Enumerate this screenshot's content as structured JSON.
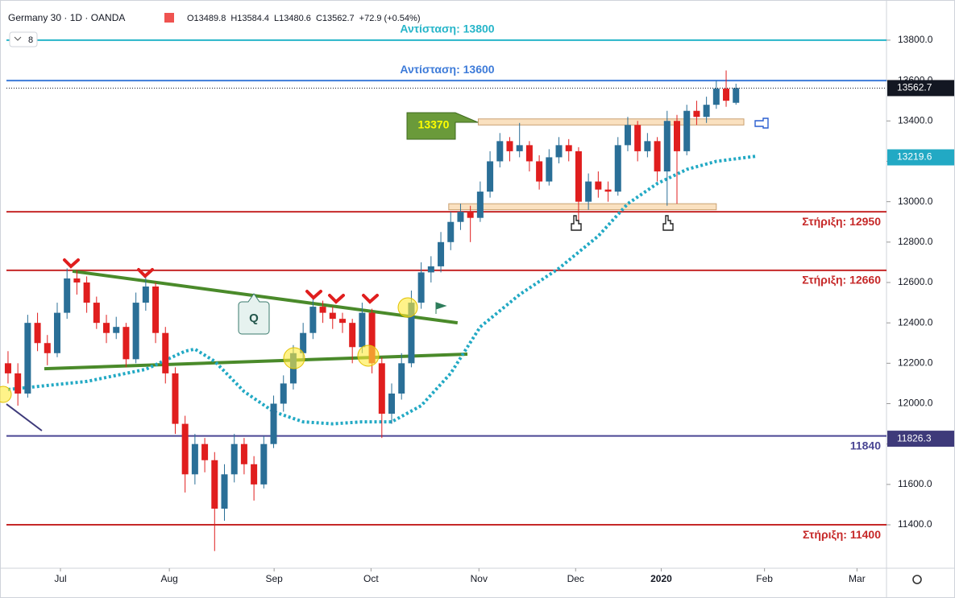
{
  "chart_data": {
    "type": "candlestick",
    "title": "Germany 30 · 1D · OANDA",
    "indicator_count": "8",
    "ohlc_header": [
      "O13489.8",
      "H13584.4",
      "L13480.6",
      "C13562.7",
      "+72.9 (+0.54%)"
    ],
    "up_color": "#2a6f97",
    "down_color": "#e01e1e",
    "ohlc": [
      [
        12200,
        12260,
        12100,
        12150
      ],
      [
        12150,
        12200,
        11990,
        12050
      ],
      [
        12050,
        12440,
        12030,
        12400
      ],
      [
        12400,
        12450,
        12260,
        12300
      ],
      [
        12300,
        12340,
        12190,
        12250
      ],
      [
        12250,
        12500,
        12230,
        12450
      ],
      [
        12450,
        12670,
        12420,
        12620
      ],
      [
        12620,
        12660,
        12540,
        12600
      ],
      [
        12600,
        12630,
        12450,
        12500
      ],
      [
        12500,
        12530,
        12370,
        12400
      ],
      [
        12400,
        12440,
        12300,
        12350
      ],
      [
        12350,
        12430,
        12320,
        12380
      ],
      [
        12380,
        12400,
        12180,
        12220
      ],
      [
        12220,
        12550,
        12200,
        12500
      ],
      [
        12500,
        12630,
        12460,
        12580
      ],
      [
        12580,
        12600,
        12300,
        12350
      ],
      [
        12350,
        12380,
        12100,
        12150
      ],
      [
        12150,
        12180,
        11850,
        11900
      ],
      [
        11900,
        11940,
        11560,
        11650
      ],
      [
        11650,
        11850,
        11600,
        11800
      ],
      [
        11800,
        11830,
        11660,
        11720
      ],
      [
        11720,
        11760,
        11270,
        11480
      ],
      [
        11480,
        11700,
        11420,
        11650
      ],
      [
        11650,
        11850,
        11610,
        11800
      ],
      [
        11800,
        11830,
        11650,
        11700
      ],
      [
        11700,
        11740,
        11520,
        11600
      ],
      [
        11600,
        11840,
        11580,
        11800
      ],
      [
        11800,
        12040,
        11780,
        12000
      ],
      [
        12000,
        12140,
        11960,
        12100
      ],
      [
        12100,
        12290,
        12070,
        12250
      ],
      [
        12250,
        12400,
        12220,
        12350
      ],
      [
        12350,
        12520,
        12320,
        12480
      ],
      [
        12480,
        12510,
        12400,
        12450
      ],
      [
        12450,
        12480,
        12370,
        12420
      ],
      [
        12420,
        12450,
        12350,
        12400
      ],
      [
        12400,
        12420,
        12200,
        12280
      ],
      [
        12280,
        12500,
        12250,
        12450
      ],
      [
        12450,
        12470,
        12150,
        12200
      ],
      [
        12200,
        12230,
        11830,
        11950
      ],
      [
        11950,
        12100,
        11900,
        12050
      ],
      [
        12050,
        12250,
        12020,
        12200
      ],
      [
        12200,
        12560,
        12180,
        12500
      ],
      [
        12500,
        12700,
        12470,
        12650
      ],
      [
        12650,
        12730,
        12600,
        12680
      ],
      [
        12680,
        12850,
        12650,
        12800
      ],
      [
        12800,
        12950,
        12760,
        12900
      ],
      [
        12900,
        12990,
        12860,
        12950
      ],
      [
        12950,
        12980,
        12800,
        12920
      ],
      [
        12920,
        13100,
        12900,
        13050
      ],
      [
        13050,
        13250,
        13020,
        13200
      ],
      [
        13200,
        13340,
        13170,
        13300
      ],
      [
        13300,
        13320,
        13200,
        13250
      ],
      [
        13250,
        13390,
        13220,
        13280
      ],
      [
        13280,
        13300,
        13150,
        13200
      ],
      [
        13200,
        13230,
        13060,
        13100
      ],
      [
        13100,
        13260,
        13080,
        13220
      ],
      [
        13220,
        13320,
        13190,
        13280
      ],
      [
        13280,
        13310,
        13200,
        13250
      ],
      [
        13250,
        13270,
        12900,
        13000
      ],
      [
        13000,
        13140,
        12960,
        13100
      ],
      [
        13100,
        13150,
        13020,
        13060
      ],
      [
        13060,
        13100,
        13000,
        13050
      ],
      [
        13050,
        13320,
        13030,
        13280
      ],
      [
        13280,
        13420,
        13250,
        13380
      ],
      [
        13380,
        13400,
        13200,
        13250
      ],
      [
        13250,
        13340,
        13220,
        13300
      ],
      [
        13300,
        13320,
        13100,
        13150
      ],
      [
        13150,
        13450,
        12980,
        13400
      ],
      [
        13400,
        13430,
        12990,
        13250
      ],
      [
        13250,
        13480,
        13230,
        13450
      ],
      [
        13450,
        13500,
        13380,
        13420
      ],
      [
        13420,
        13520,
        13390,
        13480
      ],
      [
        13480,
        13600,
        13460,
        13560
      ],
      [
        13560,
        13650,
        13470,
        13500
      ],
      [
        13489.8,
        13584.4,
        13480.6,
        13562.7
      ]
    ],
    "moving_average": {
      "color": "#22a9c4",
      "x": [
        0,
        8,
        14,
        18,
        19,
        21,
        24,
        27,
        30,
        33,
        36,
        39,
        42,
        45,
        48,
        52,
        56,
        60,
        63,
        66,
        69,
        72,
        76
      ],
      "values": [
        12070,
        12110,
        12170,
        12260,
        12270,
        12210,
        12060,
        11960,
        11910,
        11900,
        11910,
        11910,
        11990,
        12150,
        12380,
        12540,
        12670,
        12830,
        12990,
        13090,
        13160,
        13200,
        13225
      ]
    },
    "levels": [
      {
        "value": 13800,
        "label": "Αντίσταση: 13800",
        "color": "#26b5c9"
      },
      {
        "value": 13600,
        "label": "Αντίσταση: 13600",
        "color": "#3d7bd9"
      },
      {
        "value": 12950,
        "label": "Στήριξη: 12950",
        "color": "#c62828"
      },
      {
        "value": 12660,
        "label": "Στήριξη: 12660",
        "color": "#c62828"
      },
      {
        "value": 11840,
        "label": "11840",
        "color": "#4a4694"
      },
      {
        "value": 11400,
        "label": "Στήριξη: 11400",
        "color": "#c62828"
      }
    ],
    "price_labels": [
      {
        "value": 13562.7,
        "color": "#131722"
      },
      {
        "value": 13219.6,
        "color": "#22a9c4"
      },
      {
        "value": 11826.3,
        "color": "#3e3a7a"
      }
    ],
    "zones": [
      {
        "x": [
          47.8,
          74.8
        ],
        "y": [
          13380,
          13410
        ]
      },
      {
        "x": [
          44.8,
          72.0
        ],
        "y": [
          12960,
          12990
        ]
      }
    ],
    "trendlines": [
      {
        "x": [
          3.69,
          46.7
        ],
        "y": [
          12173,
          12245
        ],
        "color": "#4a8a2a"
      },
      {
        "x": [
          6.56,
          45.7
        ],
        "y": [
          12656,
          12400
        ],
        "color": "#4a8a2a"
      },
      {
        "x": [
          -0.16,
          3.44
        ],
        "y": [
          11998,
          11866
        ],
        "color": "#3e3a7a"
      }
    ],
    "zone_label": "13370",
    "pattern_label": "Q",
    "xlim": [
      -0.16,
      89.3
    ],
    "xticks": [
      {
        "value": 5.33,
        "label": "Jul"
      },
      {
        "value": 16.4,
        "label": "Aug"
      },
      {
        "value": 27.05,
        "label": "Sep"
      },
      {
        "value": 36.9,
        "label": "Oct"
      },
      {
        "value": 47.87,
        "label": "Nov"
      },
      {
        "value": 57.7,
        "label": "Dec"
      },
      {
        "value": 66.4,
        "label": "2020"
      },
      {
        "value": 76.9,
        "label": "Feb"
      },
      {
        "value": 86.3,
        "label": "Mar"
      }
    ],
    "ylim": [
      11185,
      13967
    ],
    "yticks": [
      {
        "value": 11400,
        "label": "11400.0"
      },
      {
        "value": 11600,
        "label": "11600.0"
      },
      {
        "value": 11800,
        "label": "11800.0"
      },
      {
        "value": 12000,
        "label": "12000.0"
      },
      {
        "value": 12200,
        "label": "12200.0"
      },
      {
        "value": 12400,
        "label": "12400.0"
      },
      {
        "value": 12600,
        "label": "12600.0"
      },
      {
        "value": 12800,
        "label": "12800.0"
      },
      {
        "value": 13000,
        "label": "13000.0"
      },
      {
        "value": 13200,
        "label": "13200.0"
      },
      {
        "value": 13400,
        "label": "13400.0"
      },
      {
        "value": 13600,
        "label": "13600.0"
      },
      {
        "value": 13800,
        "label": "13800.0"
      }
    ],
    "grid": false
  }
}
